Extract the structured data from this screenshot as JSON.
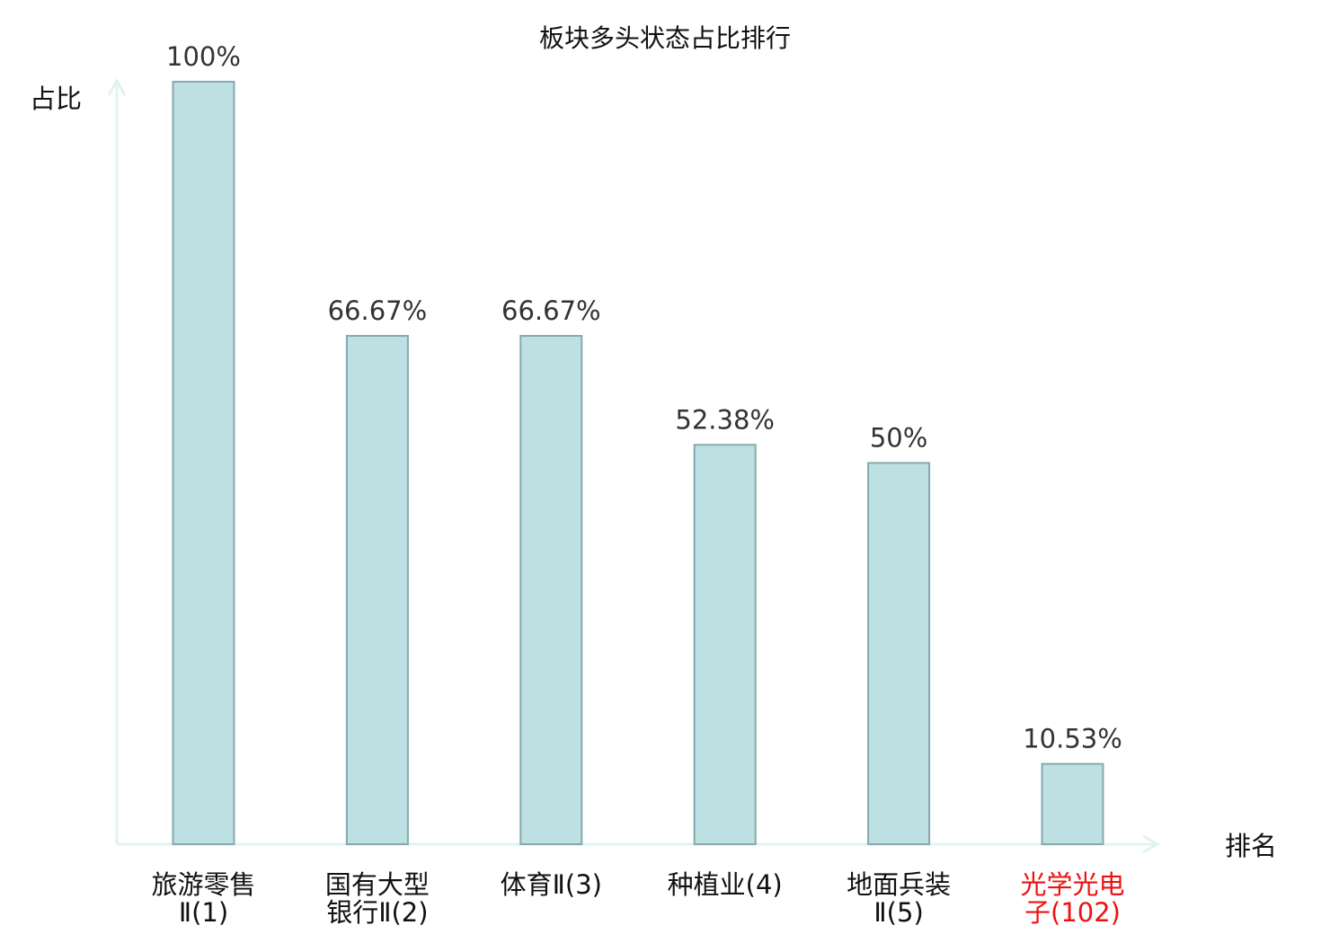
{
  "chart_data": {
    "type": "bar",
    "title": "板块多头状态占比排行",
    "ylabel": "占比",
    "xlabel": "排名",
    "ylim": [
      0,
      100
    ],
    "unit": "%",
    "categories": [
      {
        "lines": [
          "旅游零售",
          "Ⅱ(1)"
        ],
        "highlight": false
      },
      {
        "lines": [
          "国有大型",
          "银行Ⅱ(2)"
        ],
        "highlight": false
      },
      {
        "lines": [
          "体育Ⅱ(3)"
        ],
        "highlight": false
      },
      {
        "lines": [
          "种植业(4)"
        ],
        "highlight": false
      },
      {
        "lines": [
          "地面兵装",
          "Ⅱ(5)"
        ],
        "highlight": false
      },
      {
        "lines": [
          "光学光电",
          "子(102)"
        ],
        "highlight": true
      }
    ],
    "values": [
      100,
      66.67,
      66.67,
      52.38,
      50,
      10.53
    ],
    "value_labels": [
      "100%",
      "66.67%",
      "66.67%",
      "52.38%",
      "50%",
      "10.53%"
    ],
    "grid": false,
    "legend": "none",
    "colors": {
      "bar_fill": "#bde0e3",
      "bar_stroke": "#86a9ad",
      "axis": "#e0f3f0",
      "highlight_text": "#ee1111",
      "label_text": "#111111",
      "value_text": "#333333"
    }
  }
}
